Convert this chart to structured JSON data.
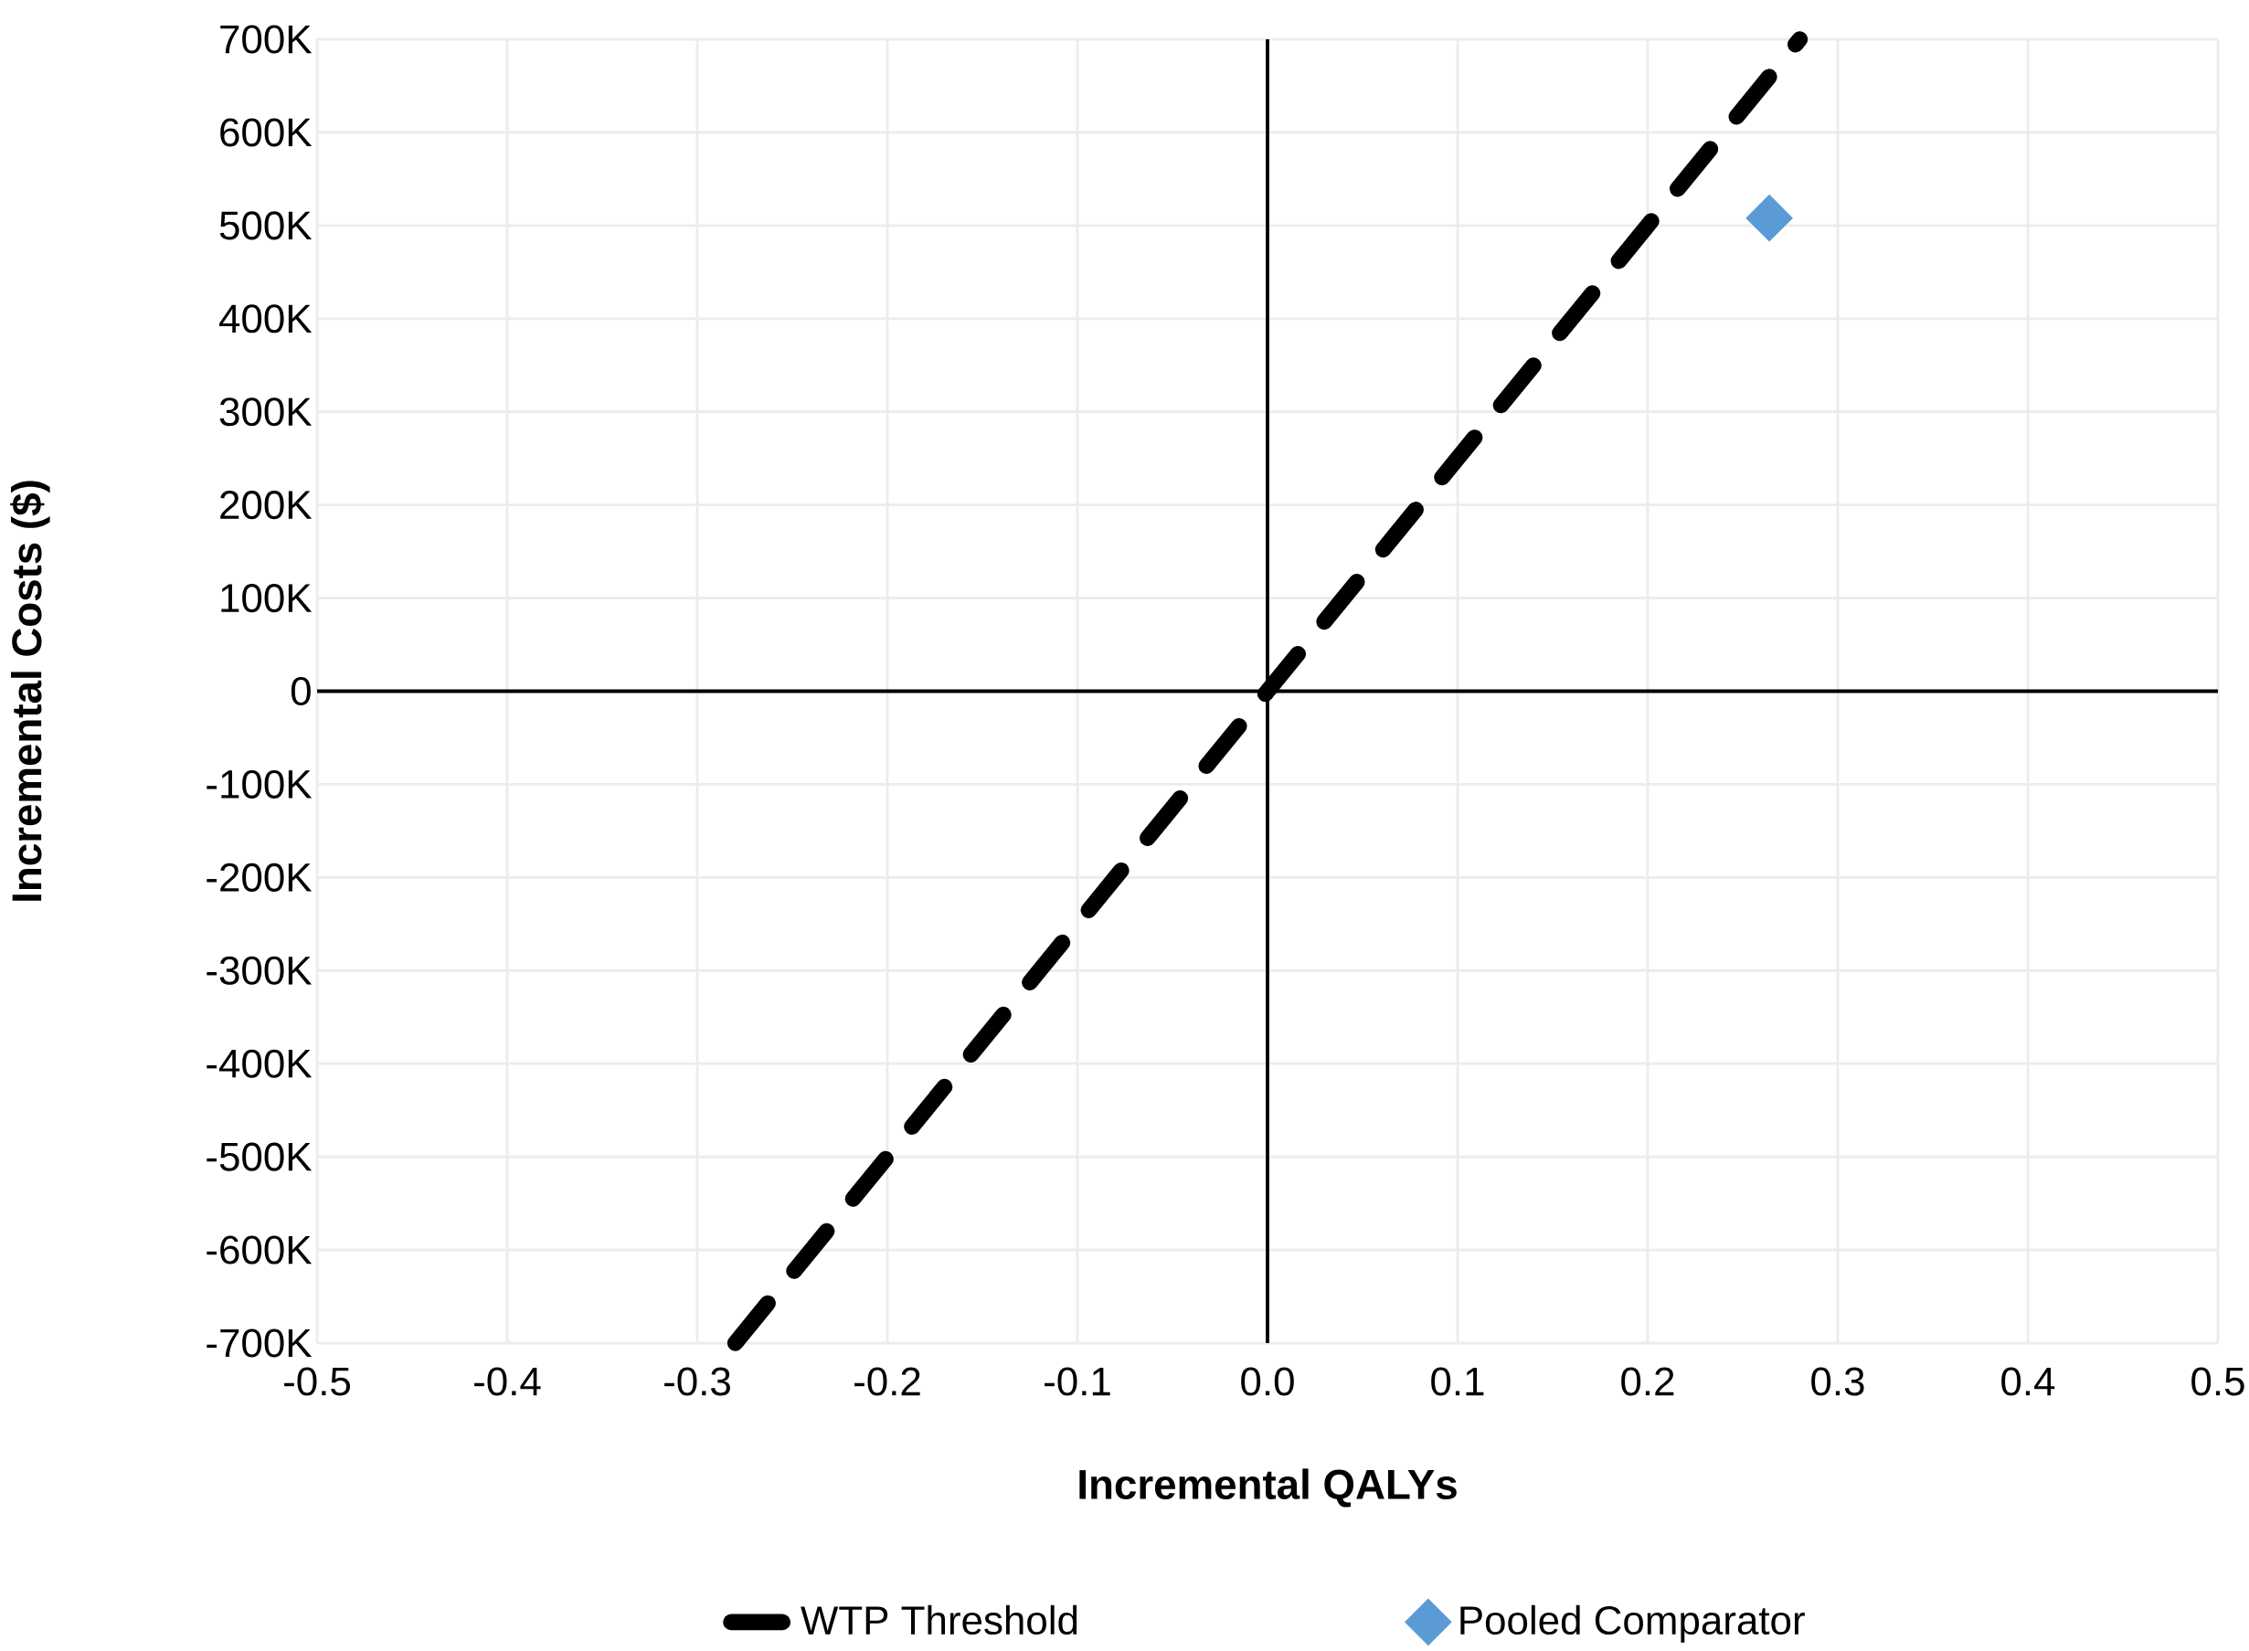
{
  "chart_data": {
    "type": "scatter",
    "xlabel": "Incremental QALYs",
    "ylabel": "Incremental Costs ($)",
    "series": [
      {
        "name": "WTP Threshold",
        "type": "line",
        "color": "#000000",
        "line_style": "dashed",
        "marker": "none",
        "x": [
          -0.28,
          0.28
        ],
        "values": [
          -700000,
          700000
        ]
      },
      {
        "name": "Pooled Comparator",
        "color": "#5b9bd5",
        "marker": "diamond",
        "x": [
          0.264
        ],
        "values": [
          508000
        ]
      }
    ],
    "xlim": [
      -0.5,
      0.5
    ],
    "ylim": [
      -700000,
      700000
    ],
    "xticks": [
      -0.5,
      -0.4,
      -0.3,
      -0.2,
      -0.1,
      {
        "value": 0,
        "label": "0.0"
      },
      0.1,
      0.2,
      0.3,
      0.4,
      0.5
    ],
    "yticks": [
      {
        "value": -700000,
        "label": "-700K"
      },
      {
        "value": -600000,
        "label": "-600K"
      },
      {
        "value": -500000,
        "label": "-500K"
      },
      {
        "value": -400000,
        "label": "-400K"
      },
      {
        "value": -300000,
        "label": "-300K"
      },
      {
        "value": -200000,
        "label": "-200K"
      },
      {
        "value": -100000,
        "label": "-100K"
      },
      0,
      {
        "value": 100000,
        "label": "100K"
      },
      {
        "value": 200000,
        "label": "200K"
      },
      {
        "value": 300000,
        "label": "300K"
      },
      {
        "value": 400000,
        "label": "400K"
      },
      {
        "value": 500000,
        "label": "500K"
      },
      {
        "value": 600000,
        "label": "600K"
      },
      {
        "value": 700000,
        "label": "700K"
      }
    ],
    "grid": true,
    "legend": "bottom"
  }
}
